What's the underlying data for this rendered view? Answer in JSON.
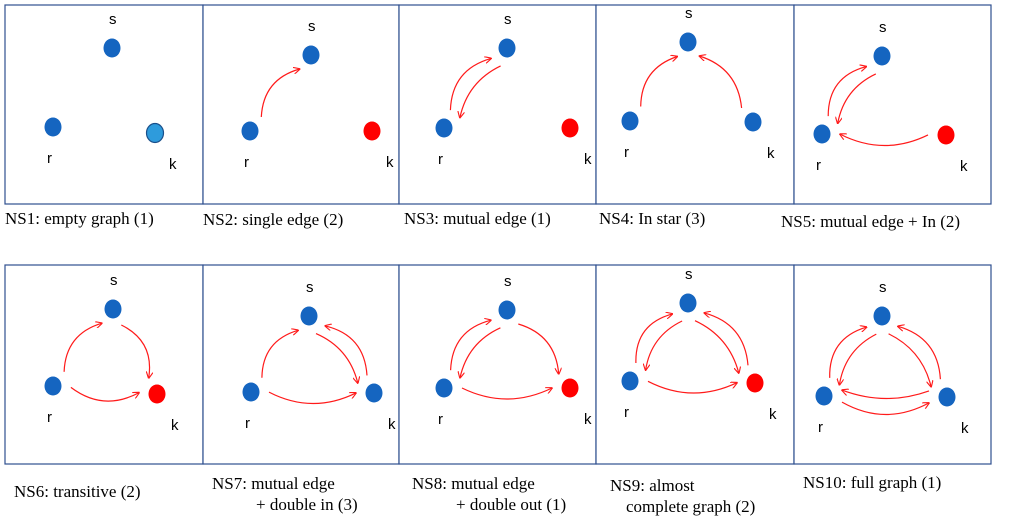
{
  "colors": {
    "node_blue": "#1565c0",
    "node_light_blue": "#2e9bdc",
    "node_red": "#ff0000",
    "edge_red": "#ff1a1a"
  },
  "panels": [
    {
      "id": "ns1",
      "caption": [
        "NS1: empty graph (1)"
      ],
      "nodes": [
        {
          "label": "s",
          "color": "node_blue"
        },
        {
          "label": "r",
          "color": "node_blue"
        },
        {
          "label": "k",
          "color": "node_light_blue"
        }
      ],
      "edges": []
    },
    {
      "id": "ns2",
      "caption": [
        "NS2: single edge (2)"
      ],
      "nodes": [
        {
          "label": "s",
          "color": "node_blue"
        },
        {
          "label": "r",
          "color": "node_blue"
        },
        {
          "label": "k",
          "color": "node_red"
        }
      ],
      "edges": [
        {
          "from": "r",
          "to": "s"
        }
      ]
    },
    {
      "id": "ns3",
      "caption": [
        "NS3: mutual edge (1)"
      ],
      "nodes": [
        {
          "label": "s",
          "color": "node_blue"
        },
        {
          "label": "r",
          "color": "node_blue"
        },
        {
          "label": "k",
          "color": "node_red"
        }
      ],
      "edges": [
        {
          "from": "r",
          "to": "s"
        },
        {
          "from": "s",
          "to": "r"
        }
      ]
    },
    {
      "id": "ns4",
      "caption": [
        "NS4: In star (3)"
      ],
      "nodes": [
        {
          "label": "s",
          "color": "node_blue"
        },
        {
          "label": "r",
          "color": "node_blue"
        },
        {
          "label": "k",
          "color": "node_blue"
        }
      ],
      "edges": [
        {
          "from": "r",
          "to": "s"
        },
        {
          "from": "k",
          "to": "s"
        }
      ]
    },
    {
      "id": "ns5",
      "caption": [
        "NS5: mutual edge + In (2)"
      ],
      "nodes": [
        {
          "label": "s",
          "color": "node_blue"
        },
        {
          "label": "r",
          "color": "node_blue"
        },
        {
          "label": "k",
          "color": "node_red"
        }
      ],
      "edges": [
        {
          "from": "r",
          "to": "s"
        },
        {
          "from": "s",
          "to": "r"
        },
        {
          "from": "k",
          "to": "r"
        }
      ]
    },
    {
      "id": "ns6",
      "caption": [
        "NS6: transitive (2)"
      ],
      "nodes": [
        {
          "label": "s",
          "color": "node_blue"
        },
        {
          "label": "r",
          "color": "node_blue"
        },
        {
          "label": "k",
          "color": "node_red"
        }
      ],
      "edges": [
        {
          "from": "r",
          "to": "s"
        },
        {
          "from": "s",
          "to": "k"
        },
        {
          "from": "r",
          "to": "k"
        }
      ]
    },
    {
      "id": "ns7",
      "caption": [
        "NS7: mutual edge",
        "+ double in (3)"
      ],
      "nodes": [
        {
          "label": "s",
          "color": "node_blue"
        },
        {
          "label": "r",
          "color": "node_blue"
        },
        {
          "label": "k",
          "color": "node_blue"
        }
      ],
      "edges": [
        {
          "from": "r",
          "to": "s"
        },
        {
          "from": "s",
          "to": "k"
        },
        {
          "from": "k",
          "to": "s"
        },
        {
          "from": "r",
          "to": "k"
        }
      ]
    },
    {
      "id": "ns8",
      "caption": [
        "NS8: mutual edge",
        "+ double out (1)"
      ],
      "nodes": [
        {
          "label": "s",
          "color": "node_blue"
        },
        {
          "label": "r",
          "color": "node_blue"
        },
        {
          "label": "k",
          "color": "node_red"
        }
      ],
      "edges": [
        {
          "from": "r",
          "to": "s"
        },
        {
          "from": "s",
          "to": "r"
        },
        {
          "from": "s",
          "to": "k"
        },
        {
          "from": "r",
          "to": "k"
        }
      ]
    },
    {
      "id": "ns9",
      "caption": [
        "NS9: almost",
        "complete graph (2)"
      ],
      "nodes": [
        {
          "label": "s",
          "color": "node_blue"
        },
        {
          "label": "r",
          "color": "node_blue"
        },
        {
          "label": "k",
          "color": "node_red"
        }
      ],
      "edges": [
        {
          "from": "r",
          "to": "s"
        },
        {
          "from": "s",
          "to": "r"
        },
        {
          "from": "s",
          "to": "k"
        },
        {
          "from": "k",
          "to": "s"
        },
        {
          "from": "r",
          "to": "k"
        }
      ]
    },
    {
      "id": "ns10",
      "caption": [
        "NS10: full graph (1)"
      ],
      "nodes": [
        {
          "label": "s",
          "color": "node_blue"
        },
        {
          "label": "r",
          "color": "node_blue"
        },
        {
          "label": "k",
          "color": "node_blue"
        }
      ],
      "edges": [
        {
          "from": "r",
          "to": "s"
        },
        {
          "from": "s",
          "to": "r"
        },
        {
          "from": "s",
          "to": "k"
        },
        {
          "from": "k",
          "to": "s"
        },
        {
          "from": "r",
          "to": "k"
        },
        {
          "from": "k",
          "to": "r"
        }
      ]
    }
  ]
}
